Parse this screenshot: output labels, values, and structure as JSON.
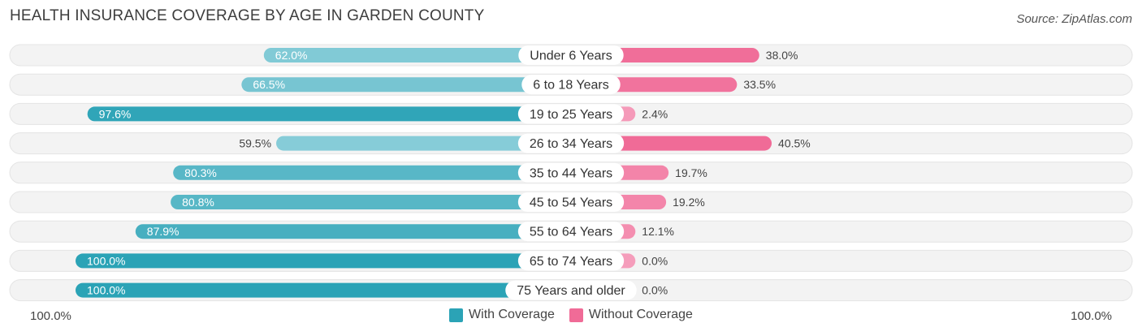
{
  "header": {
    "title": "HEALTH INSURANCE COVERAGE BY AGE IN GARDEN COUNTY",
    "source": "Source: ZipAtlas.com"
  },
  "colors": {
    "with_coverage": "#2ba3b6",
    "with_coverage_light": "#86ccd8",
    "without_coverage": "#f06b97",
    "without_coverage_light": "#f6a6c1",
    "row_bg": "#f2f2f2"
  },
  "legend": {
    "with_label": "With Coverage",
    "without_label": "Without Coverage"
  },
  "axis": {
    "left_label": "100.0%",
    "right_label": "100.0%"
  },
  "chart_data": {
    "type": "bar",
    "orientation": "horizontal-diverging",
    "title": "HEALTH INSURANCE COVERAGE BY AGE IN GARDEN COUNTY",
    "categories": [
      "Under 6 Years",
      "6 to 18 Years",
      "19 to 25 Years",
      "26 to 34 Years",
      "35 to 44 Years",
      "45 to 54 Years",
      "55 to 64 Years",
      "65 to 74 Years",
      "75 Years and older"
    ],
    "series": [
      {
        "name": "With Coverage",
        "values": [
          62.0,
          66.5,
          97.6,
          59.5,
          80.3,
          80.8,
          87.9,
          100.0,
          100.0
        ],
        "labels": [
          "62.0%",
          "66.5%",
          "97.6%",
          "59.5%",
          "80.3%",
          "80.8%",
          "87.9%",
          "100.0%",
          "100.0%"
        ]
      },
      {
        "name": "Without Coverage",
        "values": [
          38.0,
          33.5,
          2.4,
          40.5,
          19.7,
          19.2,
          12.1,
          0.0,
          0.0
        ],
        "labels": [
          "38.0%",
          "33.5%",
          "2.4%",
          "40.5%",
          "19.7%",
          "19.2%",
          "12.1%",
          "0.0%",
          "0.0%"
        ]
      }
    ],
    "xlim": [
      -100,
      100
    ],
    "legend_position": "bottom-center"
  }
}
